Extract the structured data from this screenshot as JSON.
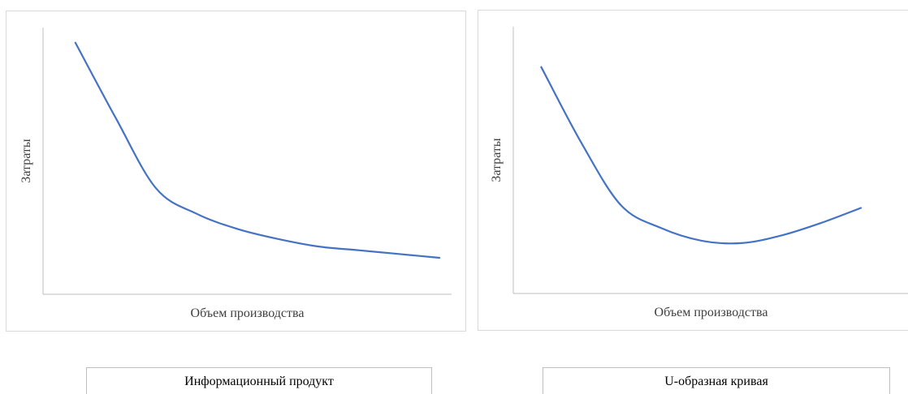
{
  "chart_data": [
    {
      "type": "line",
      "title": "",
      "xlabel": "Объем производства",
      "ylabel": "Затраты",
      "x": [
        1,
        2,
        3,
        4,
        5,
        6,
        7,
        8,
        9,
        10
      ],
      "series": [
        {
          "values": [
            10.0,
            7.0,
            4.2,
            3.2,
            2.6,
            2.2,
            1.9,
            1.75,
            1.6,
            1.45
          ]
        }
      ],
      "ylim": [
        0,
        10.6
      ],
      "xlim": [
        0.2,
        10.3
      ],
      "grid": false,
      "color": "#4472c4"
    },
    {
      "type": "line",
      "title": "",
      "xlabel": "Объем производства",
      "ylabel": "Затраты",
      "x": [
        1,
        2,
        3,
        4,
        5,
        6,
        7,
        8,
        9
      ],
      "series": [
        {
          "values": [
            9.0,
            6.0,
            3.5,
            2.6,
            2.1,
            2.0,
            2.3,
            2.8,
            3.4
          ]
        }
      ],
      "ylim": [
        0,
        10.6
      ],
      "xlim": [
        0.3,
        10.2
      ],
      "grid": false,
      "color": "#4472c4"
    }
  ],
  "captions": {
    "left": "Информационный продукт",
    "right": "U-образная кривая"
  }
}
